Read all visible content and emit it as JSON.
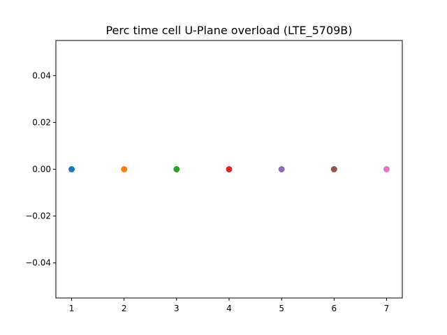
{
  "chart_data": {
    "type": "scatter",
    "title": "Perc time cell U-Plane overload (LTE_5709B)",
    "xlabel": "",
    "ylabel": "",
    "xlim": [
      0.7,
      7.3
    ],
    "ylim": [
      -0.055,
      0.055
    ],
    "xticks": [
      1,
      2,
      3,
      4,
      5,
      6,
      7
    ],
    "xtick_labels": [
      "1",
      "2",
      "3",
      "4",
      "5",
      "6",
      "7"
    ],
    "yticks": [
      -0.04,
      -0.02,
      0.0,
      0.02,
      0.04
    ],
    "ytick_labels": [
      "−0.04",
      "−0.02",
      "0.00",
      "0.02",
      "0.04"
    ],
    "grid": false,
    "points": [
      {
        "x": 1,
        "y": 0.0,
        "color": "#1f77b4"
      },
      {
        "x": 2,
        "y": 0.0,
        "color": "#ff7f0e"
      },
      {
        "x": 3,
        "y": 0.0,
        "color": "#2ca02c"
      },
      {
        "x": 4,
        "y": 0.0,
        "color": "#d62728"
      },
      {
        "x": 5,
        "y": 0.0,
        "color": "#9467bd"
      },
      {
        "x": 6,
        "y": 0.0,
        "color": "#8c564b"
      },
      {
        "x": 7,
        "y": 0.0,
        "color": "#e377c2"
      }
    ]
  }
}
